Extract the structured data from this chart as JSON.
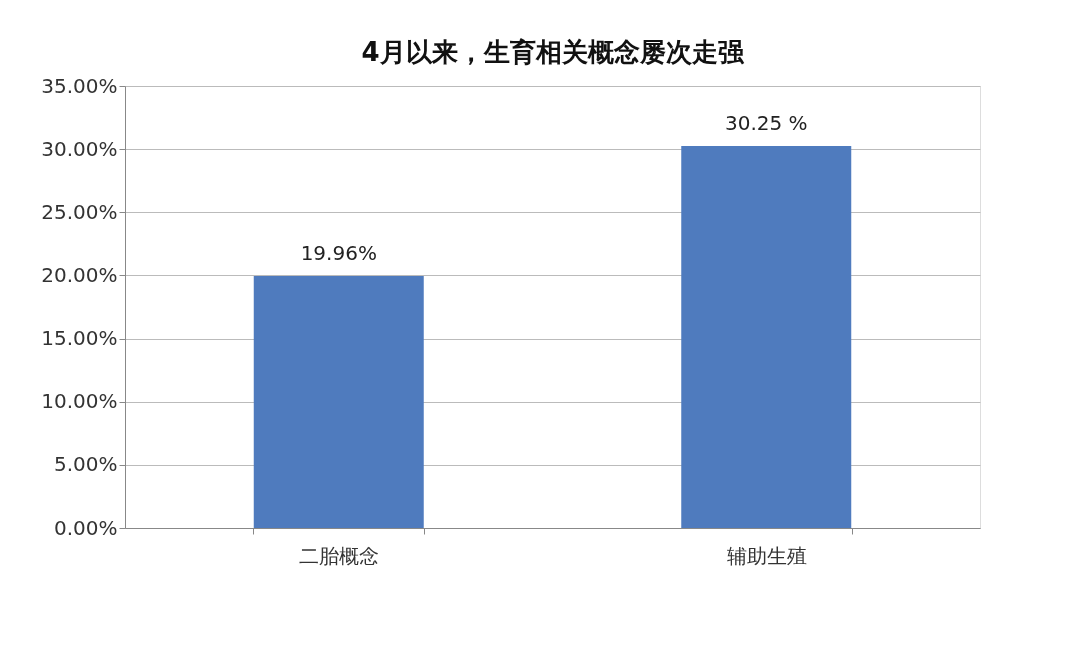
{
  "chart_data": {
    "type": "bar",
    "title": "4月以来，生育相关概念屡次走强",
    "categories": [
      "二胎概念",
      "辅助生殖"
    ],
    "series": [
      {
        "color": "#4f7bbe",
        "values": [
          19.96,
          30.25
        ]
      }
    ],
    "value_labels": [
      "19.96%",
      "30.25 %"
    ],
    "ylim": [
      0,
      35
    ],
    "yticks": [
      {
        "value": 0,
        "label": "0.00%"
      },
      {
        "value": 5,
        "label": "5.00%"
      },
      {
        "value": 10,
        "label": "10.00%"
      },
      {
        "value": 15,
        "label": "15.00%"
      },
      {
        "value": 20,
        "label": "20.00%"
      },
      {
        "value": 25,
        "label": "25.00%"
      },
      {
        "value": 30,
        "label": "30.00%"
      },
      {
        "value": 35,
        "label": "35.00%"
      }
    ],
    "grid": "y"
  }
}
